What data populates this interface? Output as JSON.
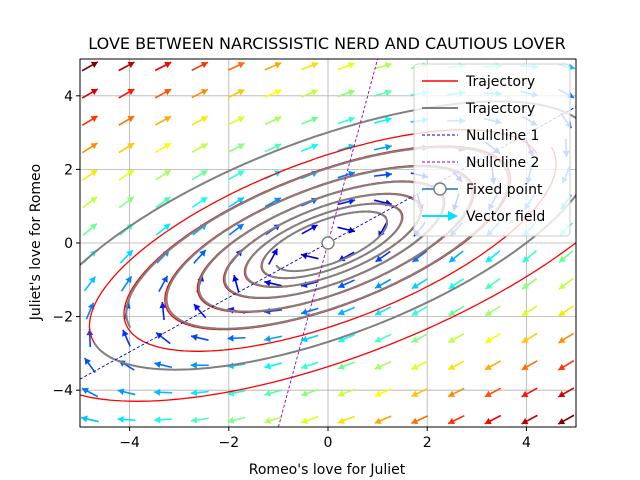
{
  "chart_data": {
    "type": "line",
    "title": "LOVE BETWEEN NARCISSISTIC NERD AND CAUTIOUS LOVER",
    "xlabel": "Romeo's love for Juliet",
    "ylabel": "Juliet's love for Romeo",
    "xlim": [
      -5,
      5
    ],
    "ylim": [
      -5,
      5
    ],
    "xticks": [
      -4,
      -2,
      0,
      2,
      4
    ],
    "yticks": [
      -4,
      -2,
      0,
      2,
      4
    ],
    "grid": true,
    "legend_position": "top-right",
    "legend": [
      {
        "label": "Trajectory",
        "style": "red-line"
      },
      {
        "label": "Trajectory",
        "style": "gray-line"
      },
      {
        "label": "Nullcline 1",
        "style": "blue-dashed"
      },
      {
        "label": "Nullcline 2",
        "style": "purple-dashed"
      },
      {
        "label": "Fixed point",
        "style": "marker-line"
      },
      {
        "label": "Vector field",
        "style": "arrow"
      }
    ],
    "series": [
      {
        "style": "red",
        "spiral": {
          "a0": 5.2,
          "ratio": 0.8,
          "turns": 6,
          "tilt_deg": 30,
          "aspect": 0.42
        }
      },
      {
        "style": "red",
        "spiral": {
          "a0": 7.6,
          "ratio": 0.8,
          "turns": 2,
          "tilt_deg": 30,
          "aspect": 0.42,
          "start_turn": 0
        }
      },
      {
        "style": "gray",
        "spiral": {
          "a0": 4.6,
          "ratio": 0.8,
          "turns": 6,
          "tilt_deg": 30,
          "aspect": 0.42,
          "phase_deg": 180
        }
      },
      {
        "style": "gray",
        "spiral": {
          "a0": 6.8,
          "ratio": 0.8,
          "turns": 1,
          "tilt_deg": 30,
          "aspect": 0.42,
          "phase_deg": 180
        }
      }
    ],
    "nullcline_1": {
      "x": [
        -5,
        5
      ],
      "y": [
        -3.7,
        3.7
      ]
    },
    "nullcline_2": {
      "x": [
        -1.0,
        1.0
      ],
      "y": [
        -5,
        5
      ]
    },
    "fixed_point": {
      "x": 0,
      "y": 0
    },
    "vector_field": {
      "x_range": [
        -4.8,
        4.8
      ],
      "y_range": [
        -4.8,
        4.8
      ],
      "n": 14,
      "tilt_deg": 30,
      "aspect": 0.42
    }
  },
  "colors": {
    "trajectory_red": "#ff0000",
    "trajectory_gray": "#808080",
    "nullcline_1": "#0000cc",
    "nullcline_2": "#9900aa",
    "fixed_point": "#1f77b4",
    "vector_field": "#00e5ff",
    "grid": "#b0b0b0"
  }
}
